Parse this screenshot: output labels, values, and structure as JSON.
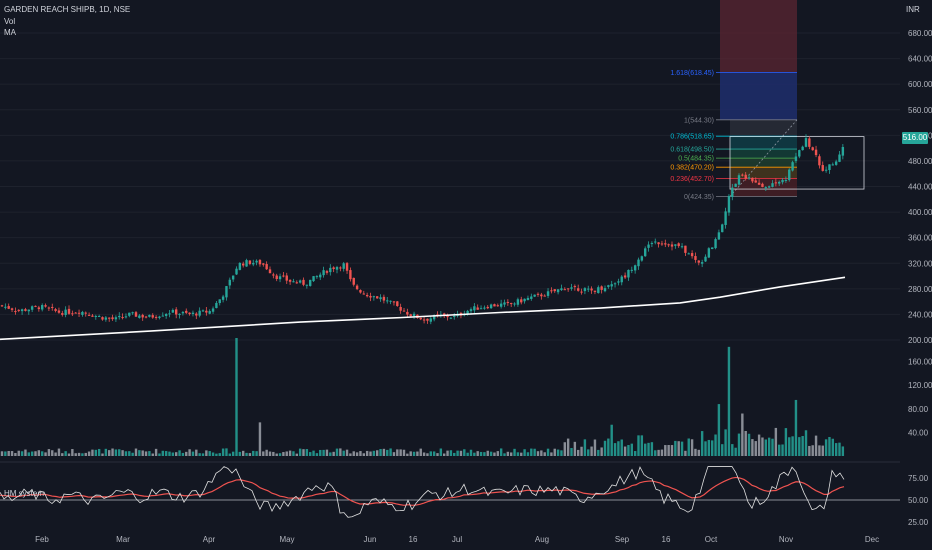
{
  "header": {
    "symbol_line": "GARDEN REACH SHIPB, 1D, NSE",
    "vol_label": "Vol",
    "ma_label": "MA",
    "currency": "INR"
  },
  "colors": {
    "background": "#131722",
    "up": "#26a69a",
    "down": "#ef5350",
    "ma": "#ffffff",
    "oscillator": "#e0e0e0",
    "oscillator_signal": "#ef5350"
  },
  "last_price": "516.00",
  "chart_data": {
    "type": "candlestick",
    "price_axis": {
      "ticks": [
        "680.00",
        "640.00",
        "600.00",
        "560.00",
        "520.00",
        "480.00",
        "440.00",
        "400.00",
        "360.00",
        "320.00",
        "280.00",
        "240.00",
        "200.00"
      ],
      "range": [
        200,
        700
      ]
    },
    "volume_axis": {
      "ticks": [
        "160.00",
        "120.00",
        "80.00",
        "40.00"
      ]
    },
    "oscillator": {
      "name": "HM system",
      "ticks": [
        "75.00",
        "50.00",
        "25.00"
      ]
    },
    "time_axis": {
      "ticks": [
        "Feb",
        "Mar",
        "Apr",
        "May",
        "Jun",
        "16",
        "Jul",
        "Aug",
        "Sep",
        "16",
        "Oct",
        "Nov",
        "Dec"
      ]
    },
    "price_path": [
      {
        "t": 0,
        "v": 254
      },
      {
        "t": 20,
        "v": 246
      },
      {
        "t": 40,
        "v": 252
      },
      {
        "t": 60,
        "v": 243
      },
      {
        "t": 80,
        "v": 245
      },
      {
        "t": 100,
        "v": 236
      },
      {
        "t": 115,
        "v": 232
      },
      {
        "t": 130,
        "v": 240
      },
      {
        "t": 150,
        "v": 236
      },
      {
        "t": 170,
        "v": 244
      },
      {
        "t": 190,
        "v": 240
      },
      {
        "t": 210,
        "v": 245
      },
      {
        "t": 222,
        "v": 268
      },
      {
        "t": 230,
        "v": 292
      },
      {
        "t": 238,
        "v": 318
      },
      {
        "t": 248,
        "v": 322
      },
      {
        "t": 262,
        "v": 320
      },
      {
        "t": 275,
        "v": 300
      },
      {
        "t": 290,
        "v": 292
      },
      {
        "t": 305,
        "v": 288
      },
      {
        "t": 318,
        "v": 300
      },
      {
        "t": 330,
        "v": 312
      },
      {
        "t": 344,
        "v": 318
      },
      {
        "t": 352,
        "v": 286
      },
      {
        "t": 365,
        "v": 272
      },
      {
        "t": 380,
        "v": 266
      },
      {
        "t": 395,
        "v": 254
      },
      {
        "t": 410,
        "v": 240
      },
      {
        "t": 425,
        "v": 232
      },
      {
        "t": 440,
        "v": 238
      },
      {
        "t": 455,
        "v": 236
      },
      {
        "t": 470,
        "v": 248
      },
      {
        "t": 490,
        "v": 254
      },
      {
        "t": 510,
        "v": 256
      },
      {
        "t": 530,
        "v": 266
      },
      {
        "t": 550,
        "v": 274
      },
      {
        "t": 570,
        "v": 284
      },
      {
        "t": 590,
        "v": 276
      },
      {
        "t": 610,
        "v": 286
      },
      {
        "t": 625,
        "v": 300
      },
      {
        "t": 640,
        "v": 330
      },
      {
        "t": 652,
        "v": 354
      },
      {
        "t": 665,
        "v": 352
      },
      {
        "t": 680,
        "v": 346
      },
      {
        "t": 692,
        "v": 330
      },
      {
        "t": 700,
        "v": 318
      },
      {
        "t": 712,
        "v": 348
      },
      {
        "t": 722,
        "v": 382
      },
      {
        "t": 730,
        "v": 430
      },
      {
        "t": 740,
        "v": 460
      },
      {
        "t": 750,
        "v": 452
      },
      {
        "t": 760,
        "v": 438
      },
      {
        "t": 772,
        "v": 444
      },
      {
        "t": 785,
        "v": 450
      },
      {
        "t": 795,
        "v": 486
      },
      {
        "t": 806,
        "v": 512
      },
      {
        "t": 815,
        "v": 490
      },
      {
        "t": 822,
        "v": 462
      },
      {
        "t": 830,
        "v": 476
      },
      {
        "t": 838,
        "v": 480
      },
      {
        "t": 845,
        "v": 516
      }
    ],
    "moving_average": [
      {
        "t": 0,
        "v": 201
      },
      {
        "t": 150,
        "v": 214
      },
      {
        "t": 300,
        "v": 228
      },
      {
        "t": 400,
        "v": 235
      },
      {
        "t": 500,
        "v": 243
      },
      {
        "t": 600,
        "v": 250
      },
      {
        "t": 680,
        "v": 258
      },
      {
        "t": 720,
        "v": 267
      },
      {
        "t": 780,
        "v": 283
      },
      {
        "t": 845,
        "v": 298
      }
    ],
    "volume_spikes": [
      {
        "t": 236,
        "v": 200
      },
      {
        "t": 260,
        "v": 57
      },
      {
        "t": 575,
        "v": 24
      },
      {
        "t": 612,
        "v": 53
      },
      {
        "t": 640,
        "v": 35
      },
      {
        "t": 718,
        "v": 88
      },
      {
        "t": 728,
        "v": 185
      },
      {
        "t": 742,
        "v": 72
      },
      {
        "t": 795,
        "v": 95
      },
      {
        "t": 845,
        "v": 50
      }
    ],
    "fib_levels": [
      {
        "label": "1.618(618.45)",
        "value": 618.45,
        "color": "#2962ff"
      },
      {
        "label": "1(544.30)",
        "value": 544.3,
        "color": "#787b86"
      },
      {
        "label": "0.786(518.65)",
        "value": 518.65,
        "color": "#00bcd4"
      },
      {
        "label": "0.618(498.50)",
        "value": 498.5,
        "color": "#26a69a"
      },
      {
        "label": "0.5(484.35)",
        "value": 484.35,
        "color": "#4caf50"
      },
      {
        "label": "0.382(470.20)",
        "value": 470.2,
        "color": "#ff9800"
      },
      {
        "label": "0.236(452.70)",
        "value": 452.7,
        "color": "#f23645"
      },
      {
        "label": "0(424.35)",
        "value": 424.35,
        "color": "#787b86"
      }
    ]
  }
}
